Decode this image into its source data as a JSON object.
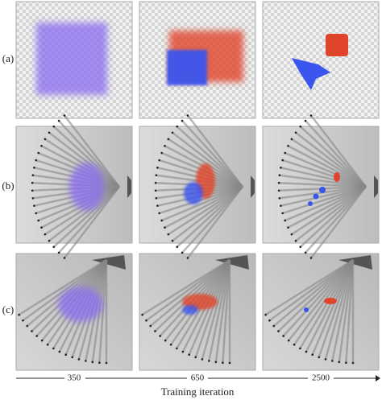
{
  "figure": {
    "row_labels": [
      "(a)",
      "(b)",
      "(c)"
    ],
    "column_labels": [
      "350",
      "650",
      "2500"
    ],
    "axis_title": "Training iteration"
  }
}
